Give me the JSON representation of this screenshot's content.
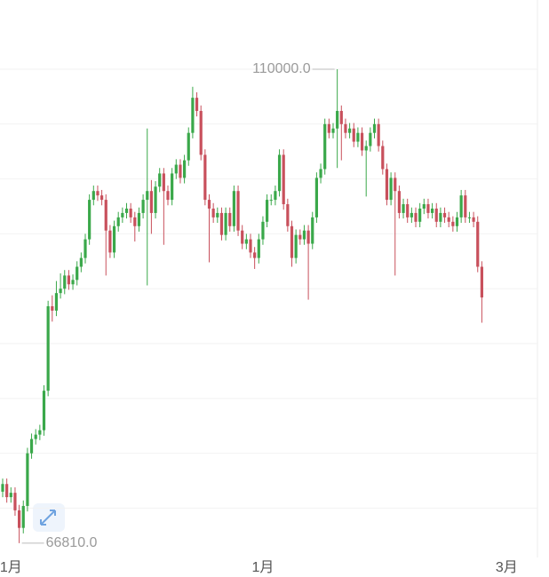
{
  "chart_data": {
    "type": "candlestick",
    "categories": [
      null,
      null,
      "1月",
      null,
      null,
      null,
      null,
      null,
      null,
      null,
      null,
      null,
      null,
      null,
      null,
      null,
      null,
      null,
      null,
      null,
      null,
      null,
      null,
      null,
      null,
      null,
      null,
      null,
      null,
      null,
      null,
      null,
      null,
      null,
      null,
      null,
      null,
      null,
      null,
      null,
      null,
      null,
      null,
      null,
      null,
      null,
      null,
      null,
      null,
      null,
      null,
      null,
      null,
      null,
      null,
      null,
      null,
      null,
      null,
      null,
      null,
      null,
      null,
      "1月",
      null,
      null,
      null,
      null,
      null,
      null,
      null,
      null,
      null,
      null,
      null,
      null,
      null,
      null,
      null,
      null,
      null,
      null,
      null,
      null,
      null,
      null,
      null,
      null,
      null,
      null,
      null,
      null,
      null,
      null,
      null,
      null,
      null,
      null,
      null,
      null,
      null,
      null,
      null,
      null,
      null,
      null,
      null,
      null,
      null,
      null,
      null,
      null,
      null,
      null,
      null,
      null,
      null,
      null,
      null,
      null,
      null,
      null,
      "3月"
    ],
    "open": [
      71500,
      72200,
      71000,
      71400,
      69800,
      68200,
      70200,
      75000,
      76300,
      76700,
      77100,
      80700,
      88400,
      88000,
      89600,
      90000,
      91200,
      90400,
      90800,
      92000,
      92800,
      94500,
      98100,
      98900,
      98500,
      98100,
      95300,
      93300,
      95700,
      96500,
      96900,
      97300,
      96500,
      95700,
      96900,
      98100,
      98900,
      96900,
      99300,
      100500,
      98900,
      98100,
      100500,
      101300,
      100100,
      101700,
      104200,
      107400,
      106200,
      102200,
      98100,
      97300,
      96500,
      96900,
      94900,
      96900,
      95700,
      98900,
      95300,
      94100,
      94500,
      93300,
      92800,
      94500,
      96100,
      98100,
      98100,
      98900,
      102200,
      97700,
      95700,
      92800,
      94900,
      94500,
      95300,
      94100,
      96500,
      100100,
      100900,
      105000,
      104200,
      104600,
      106200,
      105000,
      104200,
      104600,
      103400,
      104200,
      102600,
      103000,
      104200,
      105000,
      103000,
      100900,
      98100,
      100100,
      98900,
      96900,
      97700,
      96500,
      96900,
      96100,
      97300,
      97700,
      96900,
      97300,
      96100,
      96900,
      96500,
      96100,
      95700,
      96500,
      98500,
      96500,
      96500,
      96100,
      92000,
      null,
      null,
      null,
      null,
      null,
      null
    ],
    "high": [
      72700,
      72700,
      71900,
      71900,
      70300,
      70700,
      75500,
      76800,
      77200,
      77600,
      81200,
      88900,
      89400,
      90700,
      91400,
      91700,
      91700,
      91300,
      92500,
      93300,
      95000,
      98600,
      99400,
      99400,
      99000,
      98600,
      95800,
      96200,
      97000,
      97400,
      97800,
      97800,
      97000,
      97400,
      98600,
      104600,
      99900,
      99800,
      101000,
      101000,
      99400,
      101000,
      101800,
      101800,
      102200,
      104700,
      108400,
      107900,
      106700,
      102700,
      98600,
      97800,
      97400,
      97400,
      97400,
      97400,
      99400,
      99400,
      95800,
      95000,
      95000,
      93800,
      95000,
      96600,
      98600,
      98600,
      99400,
      102700,
      102700,
      98200,
      96200,
      95400,
      95400,
      95800,
      95800,
      97000,
      100600,
      101400,
      105500,
      105500,
      105100,
      110000,
      106700,
      105500,
      105100,
      105100,
      104700,
      104700,
      103500,
      104700,
      105500,
      105500,
      103500,
      101400,
      100600,
      100600,
      99400,
      98200,
      98200,
      97400,
      97400,
      97800,
      98200,
      98200,
      97800,
      97800,
      97400,
      97400,
      97000,
      96600,
      97000,
      99000,
      99000,
      97000,
      97000,
      96600,
      92500,
      null,
      null,
      null,
      null,
      null,
      null
    ],
    "low": [
      71000,
      70500,
      70500,
      69300,
      66810,
      67700,
      69700,
      74500,
      75800,
      76200,
      76600,
      80200,
      87000,
      87500,
      89100,
      89500,
      89900,
      89900,
      90300,
      91500,
      92300,
      94000,
      97600,
      98000,
      97600,
      91200,
      92800,
      92800,
      95200,
      96000,
      96400,
      96000,
      94300,
      95200,
      96400,
      90300,
      95000,
      96400,
      98800,
      94000,
      97600,
      97600,
      100000,
      99600,
      99600,
      101200,
      103700,
      105700,
      101700,
      97600,
      92400,
      96000,
      96000,
      94400,
      94400,
      95200,
      95200,
      94800,
      93600,
      93600,
      92800,
      91800,
      92300,
      94000,
      95600,
      97600,
      97600,
      98400,
      97200,
      95200,
      92000,
      92300,
      94000,
      94000,
      89000,
      93600,
      96000,
      99600,
      100400,
      103700,
      103700,
      101000,
      101700,
      103700,
      103700,
      102900,
      102900,
      102100,
      98400,
      102500,
      103700,
      102500,
      100400,
      97600,
      97600,
      91200,
      96400,
      96400,
      96000,
      96000,
      95600,
      95600,
      96800,
      96400,
      96400,
      95600,
      95600,
      96000,
      95600,
      95200,
      95200,
      96000,
      96000,
      96000,
      95600,
      91500,
      86900,
      null,
      null,
      null,
      null,
      null,
      null
    ],
    "close": [
      72200,
      71000,
      71400,
      69800,
      68200,
      70200,
      75000,
      76300,
      76700,
      77100,
      80700,
      88400,
      88000,
      89600,
      90000,
      91200,
      90400,
      90800,
      92000,
      92800,
      94500,
      98100,
      98900,
      98500,
      98100,
      95300,
      93300,
      95700,
      96500,
      96900,
      97300,
      96500,
      95700,
      96900,
      98100,
      98900,
      96900,
      99300,
      100500,
      98900,
      98100,
      100500,
      101300,
      100100,
      101700,
      104200,
      107400,
      106200,
      102200,
      98100,
      97300,
      96500,
      96900,
      94900,
      96900,
      95700,
      98900,
      95300,
      94100,
      94500,
      93300,
      92800,
      94500,
      96100,
      98100,
      98100,
      98900,
      102200,
      97700,
      95700,
      92800,
      94900,
      94500,
      95300,
      94100,
      96500,
      100100,
      100900,
      105000,
      104200,
      104600,
      106200,
      105000,
      104200,
      104600,
      103400,
      104200,
      102600,
      103000,
      104200,
      105000,
      103000,
      100900,
      98100,
      100100,
      98900,
      96900,
      97700,
      96500,
      96900,
      96100,
      97300,
      97700,
      96900,
      97300,
      96100,
      96900,
      96500,
      96100,
      95700,
      96500,
      98500,
      96500,
      96500,
      96100,
      92000,
      89200,
      null,
      null,
      null,
      null,
      null,
      null
    ],
    "up_color": "#3aa84a",
    "down_color": "#c8505c",
    "ylim": [
      65505,
      116310
    ],
    "yticks": [
      70000,
      75000,
      80000,
      85000,
      90000,
      95000,
      100000,
      105000,
      110000
    ],
    "grid": true,
    "annotations": [
      {
        "label": "110000.0",
        "value": 110000
      },
      {
        "label": "66810.0",
        "value": 66810
      }
    ]
  }
}
